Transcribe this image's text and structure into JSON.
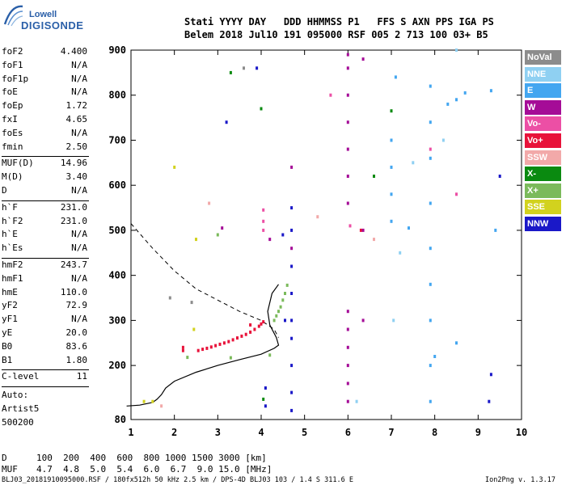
{
  "logo": {
    "line1": "Lowell",
    "line2": "DIGISONDE"
  },
  "header": {
    "row1": "Stati YYYY DAY   DDD HHMMSS P1   FFS S AXN PPS IGA PS",
    "row2": "Belem 2018 Jul10 191 095000 RSF 005 2 713 100 03+ B5"
  },
  "params": {
    "group1": [
      {
        "k": "foF2",
        "v": "4.400"
      },
      {
        "k": "foF1",
        "v": "N/A"
      },
      {
        "k": "foF1p",
        "v": "N/A"
      },
      {
        "k": "foE",
        "v": "N/A"
      },
      {
        "k": "foEp",
        "v": "1.72"
      },
      {
        "k": "fxI",
        "v": "4.65"
      },
      {
        "k": "foEs",
        "v": "N/A"
      },
      {
        "k": "fmin",
        "v": "2.50"
      }
    ],
    "group2": [
      {
        "k": "MUF(D)",
        "v": "14.96"
      },
      {
        "k": "M(D)",
        "v": "3.40"
      },
      {
        "k": "D",
        "v": "N/A"
      }
    ],
    "group3": [
      {
        "k": "h`F",
        "v": "231.0"
      },
      {
        "k": "h`F2",
        "v": "231.0"
      },
      {
        "k": "h`E",
        "v": "N/A"
      },
      {
        "k": "h`Es",
        "v": "N/A"
      }
    ],
    "group4": [
      {
        "k": "hmF2",
        "v": "243.7"
      },
      {
        "k": "hmF1",
        "v": "N/A"
      },
      {
        "k": "hmE",
        "v": "110.0"
      },
      {
        "k": "yF2",
        "v": "72.9"
      },
      {
        "k": "yF1",
        "v": "N/A"
      },
      {
        "k": "yE",
        "v": "20.0"
      },
      {
        "k": "B0",
        "v": "83.6"
      },
      {
        "k": "B1",
        "v": "1.80"
      }
    ],
    "group5": [
      {
        "k": "C-level",
        "v": "11"
      }
    ],
    "auto": [
      "Auto:",
      "Artist5",
      "500200"
    ]
  },
  "legend": [
    {
      "label": "NoVal",
      "color": "#8c8c8c"
    },
    {
      "label": "NNE",
      "color": "#8fd0f2"
    },
    {
      "label": "E",
      "color": "#43a6f0"
    },
    {
      "label": "W",
      "color": "#a50c97"
    },
    {
      "label": "Vo-",
      "color": "#ec4fa5"
    },
    {
      "label": "Vo+",
      "color": "#e8123a"
    },
    {
      "label": "SSW",
      "color": "#f2a9a9"
    },
    {
      "label": "X-",
      "color": "#0a8a10"
    },
    {
      "label": "X+",
      "color": "#7bba5b"
    },
    {
      "label": "SSE",
      "color": "#d2d21e"
    },
    {
      "label": "NNW",
      "color": "#1a18c8"
    }
  ],
  "footer": {
    "d_label": "D",
    "muf_label": "MUF",
    "d_row": "100  200  400  600  800 1000 1500 3000 [km]",
    "muf_row": "4.7  4.8  5.0  5.4  6.0  6.7  9.0 15.0 [MHz]",
    "file_info": "BLJ03_20181910095000.RSF / 180fx512h 50 kHz 2.5 km / DPS-4D BLJ03 103 / 1.4 S 311.6 E",
    "version": "Ion2Png v. 1.3.17"
  },
  "chart_data": {
    "type": "scatter",
    "xlim": [
      1,
      10
    ],
    "ylim": [
      80,
      900
    ],
    "x_ticks": [
      1,
      2,
      3,
      4,
      5,
      6,
      7,
      8,
      9,
      10
    ],
    "y_ticks": [
      80,
      200,
      300,
      400,
      500,
      600,
      700,
      800,
      900
    ],
    "grid": false,
    "legend_placement": "right",
    "profile_curve": [
      [
        0.9,
        110
      ],
      [
        1.2,
        112
      ],
      [
        1.5,
        118
      ],
      [
        1.6,
        125
      ],
      [
        1.7,
        135
      ],
      [
        1.8,
        150
      ],
      [
        2.0,
        165
      ],
      [
        2.5,
        185
      ],
      [
        3.0,
        200
      ],
      [
        3.5,
        213
      ],
      [
        4.0,
        225
      ],
      [
        4.3,
        238
      ],
      [
        4.4,
        245
      ],
      [
        4.35,
        262
      ],
      [
        4.2,
        290
      ],
      [
        4.15,
        320
      ],
      [
        4.25,
        360
      ],
      [
        4.4,
        380
      ]
    ],
    "virtual_height_curve": [
      [
        1.0,
        515
      ],
      [
        1.5,
        460
      ],
      [
        2.0,
        410
      ],
      [
        2.5,
        370
      ],
      [
        3.0,
        345
      ],
      [
        3.5,
        320
      ],
      [
        4.0,
        300
      ],
      [
        4.3,
        280
      ],
      [
        4.4,
        262
      ]
    ],
    "series": [
      {
        "name": "Vo+",
        "color": "#e8123a",
        "points": [
          [
            2.55,
            233
          ],
          [
            2.65,
            236
          ],
          [
            2.75,
            238
          ],
          [
            2.85,
            241
          ],
          [
            2.95,
            244
          ],
          [
            3.05,
            247
          ],
          [
            3.15,
            250
          ],
          [
            3.25,
            253
          ],
          [
            3.35,
            257
          ],
          [
            3.45,
            261
          ],
          [
            3.55,
            265
          ],
          [
            3.65,
            269
          ],
          [
            3.75,
            274
          ],
          [
            3.85,
            280
          ],
          [
            3.95,
            287
          ],
          [
            4.0,
            292
          ],
          [
            4.05,
            297
          ],
          [
            2.2,
            233
          ],
          [
            2.2,
            240
          ],
          [
            6.3,
            500
          ],
          [
            3.75,
            290
          ]
        ]
      },
      {
        "name": "X+",
        "color": "#7bba5b",
        "points": [
          [
            4.3,
            300
          ],
          [
            4.35,
            310
          ],
          [
            4.4,
            320
          ],
          [
            4.45,
            330
          ],
          [
            4.5,
            345
          ],
          [
            4.55,
            360
          ],
          [
            4.6,
            378
          ],
          [
            3.0,
            490
          ],
          [
            2.3,
            218
          ],
          [
            3.3,
            217
          ],
          [
            4.2,
            223
          ]
        ]
      },
      {
        "name": "W",
        "color": "#a50c97",
        "points": [
          [
            6.0,
            120
          ],
          [
            6.0,
            160
          ],
          [
            6.0,
            200
          ],
          [
            6.0,
            240
          ],
          [
            6.0,
            280
          ],
          [
            6.0,
            320
          ],
          [
            6.0,
            560
          ],
          [
            6.0,
            620
          ],
          [
            6.0,
            680
          ],
          [
            6.0,
            740
          ],
          [
            6.0,
            800
          ],
          [
            6.0,
            860
          ],
          [
            6.0,
            890
          ],
          [
            6.35,
            300
          ],
          [
            6.35,
            500
          ],
          [
            6.35,
            880
          ],
          [
            4.2,
            480
          ],
          [
            4.7,
            460
          ],
          [
            4.7,
            640
          ],
          [
            3.1,
            505
          ]
        ]
      },
      {
        "name": "E",
        "color": "#43a6f0",
        "points": [
          [
            7.0,
            520
          ],
          [
            7.0,
            580
          ],
          [
            7.0,
            640
          ],
          [
            7.0,
            700
          ],
          [
            7.1,
            840
          ],
          [
            7.4,
            505
          ],
          [
            7.9,
            120
          ],
          [
            7.9,
            200
          ],
          [
            7.9,
            300
          ],
          [
            7.9,
            380
          ],
          [
            7.9,
            460
          ],
          [
            7.9,
            560
          ],
          [
            7.9,
            660
          ],
          [
            7.9,
            740
          ],
          [
            7.9,
            820
          ],
          [
            8.0,
            220
          ],
          [
            8.3,
            780
          ],
          [
            8.5,
            790
          ],
          [
            8.7,
            805
          ],
          [
            9.4,
            500
          ],
          [
            9.3,
            810
          ],
          [
            8.5,
            250
          ]
        ]
      },
      {
        "name": "NNE",
        "color": "#8fd0f2",
        "points": [
          [
            6.2,
            120
          ],
          [
            7.05,
            300
          ],
          [
            7.2,
            450
          ],
          [
            7.5,
            650
          ],
          [
            8.2,
            700
          ],
          [
            8.5,
            900
          ]
        ]
      },
      {
        "name": "NNW",
        "color": "#1a18c8",
        "points": [
          [
            4.7,
            100
          ],
          [
            4.7,
            140
          ],
          [
            4.7,
            200
          ],
          [
            4.7,
            260
          ],
          [
            4.7,
            300
          ],
          [
            4.7,
            360
          ],
          [
            4.7,
            420
          ],
          [
            4.7,
            500
          ],
          [
            4.7,
            550
          ],
          [
            4.1,
            110
          ],
          [
            4.1,
            150
          ],
          [
            4.55,
            300
          ],
          [
            9.25,
            120
          ],
          [
            9.3,
            180
          ],
          [
            3.2,
            740
          ],
          [
            4.5,
            490
          ],
          [
            3.9,
            860
          ],
          [
            9.5,
            620
          ]
        ]
      },
      {
        "name": "Vo-",
        "color": "#ec4fa5",
        "points": [
          [
            4.05,
            500
          ],
          [
            4.05,
            520
          ],
          [
            4.05,
            545
          ],
          [
            8.5,
            580
          ],
          [
            5.6,
            800
          ],
          [
            7.9,
            680
          ],
          [
            6.05,
            510
          ]
        ]
      },
      {
        "name": "X-",
        "color": "#0a8a10",
        "points": [
          [
            4.05,
            125
          ],
          [
            3.3,
            850
          ],
          [
            4.0,
            770
          ],
          [
            6.6,
            620
          ],
          [
            7.0,
            765
          ]
        ]
      },
      {
        "name": "SSW",
        "color": "#f2a9a9",
        "points": [
          [
            1.7,
            110
          ],
          [
            2.8,
            560
          ],
          [
            5.3,
            530
          ],
          [
            6.6,
            480
          ]
        ]
      },
      {
        "name": "SSE",
        "color": "#d2d21e",
        "points": [
          [
            1.3,
            120
          ],
          [
            1.5,
            120
          ],
          [
            2.0,
            640
          ],
          [
            2.5,
            480
          ],
          [
            2.45,
            280
          ]
        ]
      },
      {
        "name": "NoVal",
        "color": "#8c8c8c",
        "points": [
          [
            1.9,
            350
          ],
          [
            2.4,
            340
          ],
          [
            3.6,
            860
          ]
        ]
      }
    ]
  }
}
